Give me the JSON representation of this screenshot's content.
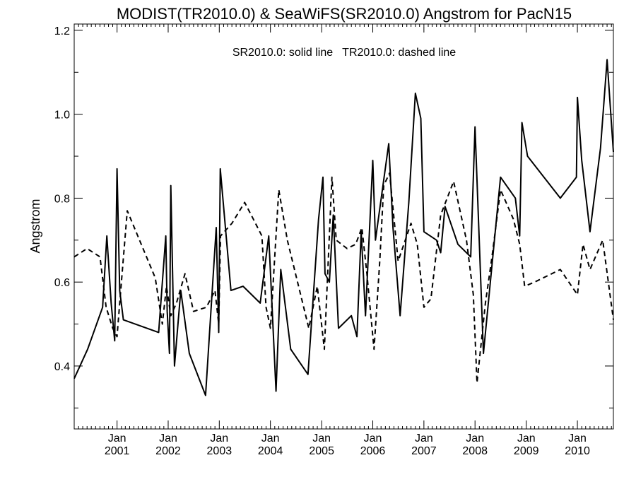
{
  "chart_data": {
    "type": "line",
    "title": "MODIST(TR2010.0) & SeaWiFS(SR2010.0)  Angstrom for PacN15",
    "annotation": "SR2010.0: solid line   TR2010.0: dashed line",
    "xlabel": "",
    "ylabel": "Angstrom",
    "xlim": [
      "2000-03-01",
      "2010-09-15"
    ],
    "ylim": [
      0.25,
      1.215
    ],
    "yticks": [
      0.4,
      0.6,
      0.8,
      1.0,
      1.2
    ],
    "ytick_labels": [
      "0.4",
      "0.6",
      "0.8",
      "1.0",
      "1.2"
    ],
    "xticks": [
      {
        "date": "2001-01-01",
        "line1": "Jan",
        "line2": "2001"
      },
      {
        "date": "2002-01-01",
        "line1": "Jan",
        "line2": "2002"
      },
      {
        "date": "2003-01-01",
        "line1": "Jan",
        "line2": "2003"
      },
      {
        "date": "2004-01-01",
        "line1": "Jan",
        "line2": "2004"
      },
      {
        "date": "2005-01-01",
        "line1": "Jan",
        "line2": "2005"
      },
      {
        "date": "2006-01-01",
        "line1": "Jan",
        "line2": "2006"
      },
      {
        "date": "2007-01-01",
        "line1": "Jan",
        "line2": "2007"
      },
      {
        "date": "2008-01-01",
        "line1": "Jan",
        "line2": "2008"
      },
      {
        "date": "2009-01-01",
        "line1": "Jan",
        "line2": "2009"
      },
      {
        "date": "2010-01-01",
        "line1": "Jan",
        "line2": "2010"
      }
    ],
    "grid": false,
    "series": [
      {
        "name": "SR2010.0",
        "style": "solid",
        "color": "#000000",
        "points": [
          [
            "2000-03-01",
            0.37
          ],
          [
            "2000-06-05",
            0.44
          ],
          [
            "2000-09-20",
            0.54
          ],
          [
            "2000-10-20",
            0.71
          ],
          [
            "2000-11-20",
            0.55
          ],
          [
            "2000-12-15",
            0.46
          ],
          [
            "2001-01-01",
            0.87
          ],
          [
            "2001-01-20",
            0.58
          ],
          [
            "2001-02-15",
            0.51
          ],
          [
            "2001-10-25",
            0.48
          ],
          [
            "2001-12-15",
            0.71
          ],
          [
            "2001-12-25",
            0.53
          ],
          [
            "2002-01-10",
            0.43
          ],
          [
            "2002-01-20",
            0.83
          ],
          [
            "2002-02-15",
            0.4
          ],
          [
            "2002-04-01",
            0.58
          ],
          [
            "2002-06-01",
            0.43
          ],
          [
            "2002-09-25",
            0.33
          ],
          [
            "2002-12-10",
            0.73
          ],
          [
            "2002-12-28",
            0.48
          ],
          [
            "2003-01-08",
            0.87
          ],
          [
            "2003-03-25",
            0.58
          ],
          [
            "2003-06-20",
            0.59
          ],
          [
            "2003-10-20",
            0.55
          ],
          [
            "2003-12-20",
            0.71
          ],
          [
            "2004-02-10",
            0.34
          ],
          [
            "2004-03-15",
            0.63
          ],
          [
            "2004-05-25",
            0.44
          ],
          [
            "2004-09-25",
            0.38
          ],
          [
            "2004-12-10",
            0.75
          ],
          [
            "2005-01-10",
            0.85
          ],
          [
            "2005-01-25",
            0.62
          ],
          [
            "2005-02-25",
            0.6
          ],
          [
            "2005-03-25",
            0.76
          ],
          [
            "2005-05-01",
            0.49
          ],
          [
            "2005-08-01",
            0.52
          ],
          [
            "2005-09-10",
            0.47
          ],
          [
            "2005-10-10",
            0.72
          ],
          [
            "2005-11-10",
            0.52
          ],
          [
            "2006-01-01",
            0.89
          ],
          [
            "2006-01-20",
            0.7
          ],
          [
            "2006-04-25",
            0.93
          ],
          [
            "2006-05-25",
            0.73
          ],
          [
            "2006-07-15",
            0.52
          ],
          [
            "2006-09-15",
            0.79
          ],
          [
            "2006-11-01",
            1.05
          ],
          [
            "2006-12-10",
            0.99
          ],
          [
            "2007-01-01",
            0.72
          ],
          [
            "2007-04-01",
            0.7
          ],
          [
            "2007-05-01",
            0.67
          ],
          [
            "2007-06-01",
            0.78
          ],
          [
            "2007-09-01",
            0.69
          ],
          [
            "2007-12-01",
            0.66
          ],
          [
            "2008-01-01",
            0.97
          ],
          [
            "2008-03-01",
            0.43
          ],
          [
            "2008-07-01",
            0.85
          ],
          [
            "2008-10-15",
            0.8
          ],
          [
            "2008-11-15",
            0.71
          ],
          [
            "2008-12-01",
            0.98
          ],
          [
            "2009-01-10",
            0.9
          ],
          [
            "2009-09-01",
            0.8
          ],
          [
            "2009-12-25",
            0.85
          ],
          [
            "2010-01-01",
            1.04
          ],
          [
            "2010-02-01",
            0.89
          ],
          [
            "2010-04-01",
            0.72
          ],
          [
            "2010-06-15",
            0.92
          ],
          [
            "2010-08-01",
            1.13
          ],
          [
            "2010-09-15",
            0.91
          ]
        ]
      },
      {
        "name": "TR2010.0",
        "style": "dashed",
        "color": "#000000",
        "points": [
          [
            "2000-03-01",
            0.66
          ],
          [
            "2000-06-01",
            0.68
          ],
          [
            "2000-09-01",
            0.66
          ],
          [
            "2000-10-15",
            0.54
          ],
          [
            "2000-12-01",
            0.49
          ],
          [
            "2001-01-01",
            0.47
          ],
          [
            "2001-02-01",
            0.6
          ],
          [
            "2001-03-15",
            0.77
          ],
          [
            "2001-10-01",
            0.61
          ],
          [
            "2001-11-20",
            0.5
          ],
          [
            "2001-12-20",
            0.59
          ],
          [
            "2002-01-20",
            0.52
          ],
          [
            "2002-03-01",
            0.55
          ],
          [
            "2002-05-01",
            0.62
          ],
          [
            "2002-07-01",
            0.53
          ],
          [
            "2002-10-01",
            0.54
          ],
          [
            "2002-12-01",
            0.58
          ],
          [
            "2002-12-28",
            0.5
          ],
          [
            "2003-01-10",
            0.71
          ],
          [
            "2003-04-01",
            0.74
          ],
          [
            "2003-07-01",
            0.79
          ],
          [
            "2003-09-01",
            0.75
          ],
          [
            "2003-11-01",
            0.71
          ],
          [
            "2003-12-01",
            0.54
          ],
          [
            "2004-01-01",
            0.49
          ],
          [
            "2004-03-01",
            0.82
          ],
          [
            "2004-05-01",
            0.7
          ],
          [
            "2004-10-01",
            0.49
          ],
          [
            "2004-12-01",
            0.59
          ],
          [
            "2005-01-20",
            0.44
          ],
          [
            "2005-03-15",
            0.85
          ],
          [
            "2005-04-15",
            0.7
          ],
          [
            "2005-07-01",
            0.68
          ],
          [
            "2005-09-01",
            0.69
          ],
          [
            "2005-10-15",
            0.73
          ],
          [
            "2005-11-20",
            0.62
          ],
          [
            "2006-01-10",
            0.44
          ],
          [
            "2006-02-20",
            0.65
          ],
          [
            "2006-03-20",
            0.83
          ],
          [
            "2006-05-01",
            0.86
          ],
          [
            "2006-07-01",
            0.65
          ],
          [
            "2006-10-01",
            0.74
          ],
          [
            "2006-11-15",
            0.69
          ],
          [
            "2007-01-01",
            0.54
          ],
          [
            "2007-02-20",
            0.56
          ],
          [
            "2007-05-01",
            0.76
          ],
          [
            "2007-08-01",
            0.84
          ],
          [
            "2007-11-01",
            0.7
          ],
          [
            "2007-12-20",
            0.57
          ],
          [
            "2008-01-15",
            0.36
          ],
          [
            "2008-03-15",
            0.55
          ],
          [
            "2008-05-01",
            0.66
          ],
          [
            "2008-07-01",
            0.82
          ],
          [
            "2008-10-01",
            0.75
          ],
          [
            "2008-11-15",
            0.69
          ],
          [
            "2008-12-20",
            0.59
          ],
          [
            "2009-03-01",
            0.6
          ],
          [
            "2009-09-01",
            0.63
          ],
          [
            "2010-01-01",
            0.57
          ],
          [
            "2010-02-10",
            0.69
          ],
          [
            "2010-04-01",
            0.63
          ],
          [
            "2010-07-01",
            0.7
          ],
          [
            "2010-09-15",
            0.51
          ]
        ]
      }
    ]
  }
}
